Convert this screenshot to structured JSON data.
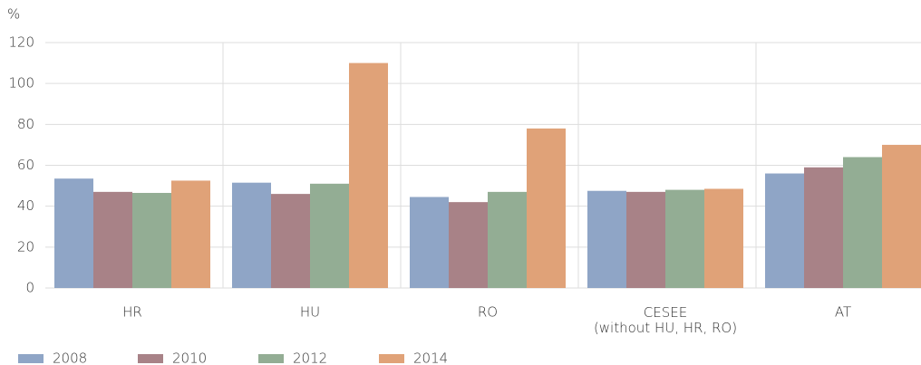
{
  "chart_data": {
    "type": "bar",
    "y_label": "%",
    "categories": [
      "HR",
      "HU",
      "RO",
      "CESEE\n(without HU, HR, RO)",
      "AT"
    ],
    "series": [
      {
        "name": "2008",
        "color": "#8fa5c6",
        "values": [
          53.5,
          51.5,
          44.5,
          47.5,
          56
        ]
      },
      {
        "name": "2010",
        "color": "#a88287",
        "values": [
          47,
          46,
          42,
          47,
          59
        ]
      },
      {
        "name": "2012",
        "color": "#93ad94",
        "values": [
          46.5,
          51,
          47,
          48,
          64
        ]
      },
      {
        "name": "2014",
        "color": "#e0a278",
        "values": [
          52.5,
          110,
          78,
          48.5,
          70
        ]
      }
    ],
    "ylim": [
      0,
      120
    ],
    "yticks": [
      0,
      20,
      40,
      60,
      80,
      100,
      120
    ],
    "grid": true
  }
}
